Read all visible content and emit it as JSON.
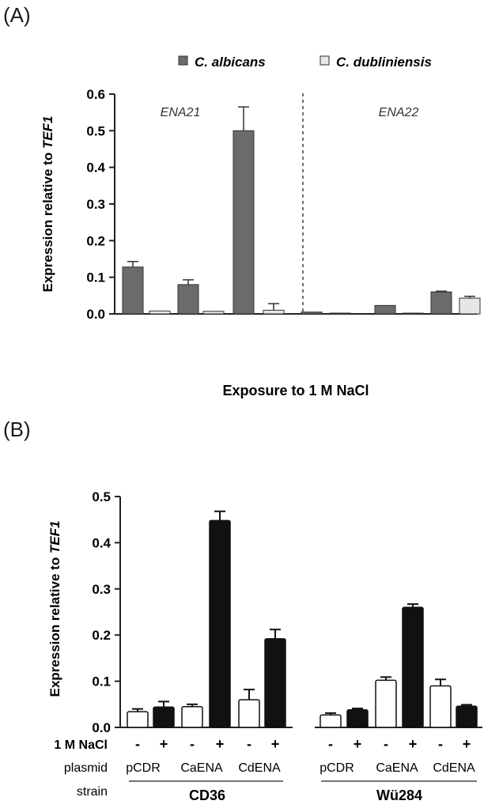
{
  "panels": {
    "a_label": "(A)",
    "b_label": "(B)"
  },
  "chart_data": [
    {
      "panel": "(A)",
      "type": "bar",
      "ylabel_plain": "Expression relative to ",
      "ylabel_italic": "TEF1",
      "xlabel": "Exposure to 1 M NaCl",
      "ylim": [
        0,
        0.6
      ],
      "yticks": [
        "0.0",
        "0.1",
        "0.2",
        "0.3",
        "0.4",
        "0.5",
        "0.6"
      ],
      "legend": [
        "C. albicans",
        "C. dubliniensis"
      ],
      "legend_position": "top-right",
      "region_labels": [
        "ENA21",
        "ENA22"
      ],
      "series": [
        {
          "name": "C. albicans",
          "color": "#6b6b6b"
        },
        {
          "name": "C. dubliniensis",
          "color": "#e6e6e6"
        }
      ],
      "bars": [
        {
          "group": "ENA21",
          "series": "C. albicans",
          "value": 0.128,
          "error": 0.015
        },
        {
          "group": "ENA21",
          "series": "C. dubliniensis",
          "value": 0.008,
          "error": 0.0
        },
        {
          "group": "ENA21",
          "series": "C. albicans",
          "value": 0.08,
          "error": 0.013
        },
        {
          "group": "ENA21",
          "series": "C. dubliniensis",
          "value": 0.007,
          "error": 0.0
        },
        {
          "group": "ENA21",
          "series": "C. albicans",
          "value": 0.5,
          "error": 0.065
        },
        {
          "group": "ENA21",
          "series": "C. dubliniensis",
          "value": 0.01,
          "error": 0.018
        },
        {
          "group": "ENA22",
          "series": "C. albicans",
          "value": 0.005,
          "error": 0.0
        },
        {
          "group": "ENA22",
          "series": "C. dubliniensis",
          "value": 0.0,
          "error": 0.0
        },
        {
          "group": "ENA22",
          "series": "C. albicans",
          "value": 0.023,
          "error": 0.0
        },
        {
          "group": "ENA22",
          "series": "C. dubliniensis",
          "value": 0.0,
          "error": 0.0
        },
        {
          "group": "ENA22",
          "series": "C. albicans",
          "value": 0.06,
          "error": 0.002
        },
        {
          "group": "ENA22",
          "series": "C. dubliniensis",
          "value": 0.043,
          "error": 0.005
        }
      ]
    },
    {
      "panel": "(B)",
      "type": "bar",
      "ylabel_plain": "Expression relative to ",
      "ylabel_italic": "TEF1",
      "ylim": [
        0,
        0.5
      ],
      "yticks": [
        "0.0",
        "0.1",
        "0.2",
        "0.3",
        "0.4",
        "0.5"
      ],
      "row_labels": [
        "1 M NaCl",
        "plasmid",
        "strain"
      ],
      "plasmids": [
        "pCDR",
        "CaENA",
        "CdENA"
      ],
      "strains": [
        "CD36",
        "Wü284"
      ],
      "colors": {
        "minus": "#ffffff",
        "plus": "#111111"
      },
      "bars": [
        {
          "strain": "CD36",
          "plasmid": "pCDR",
          "nacl": "-",
          "value": 0.034,
          "error": 0.006
        },
        {
          "strain": "CD36",
          "plasmid": "pCDR",
          "nacl": "+",
          "value": 0.044,
          "error": 0.012
        },
        {
          "strain": "CD36",
          "plasmid": "CaENA",
          "nacl": "-",
          "value": 0.045,
          "error": 0.005
        },
        {
          "strain": "CD36",
          "plasmid": "CaENA",
          "nacl": "+",
          "value": 0.448,
          "error": 0.02
        },
        {
          "strain": "CD36",
          "plasmid": "CdENA",
          "nacl": "-",
          "value": 0.06,
          "error": 0.022
        },
        {
          "strain": "CD36",
          "plasmid": "CdENA",
          "nacl": "+",
          "value": 0.192,
          "error": 0.02
        },
        {
          "strain": "Wü284",
          "plasmid": "pCDR",
          "nacl": "-",
          "value": 0.027,
          "error": 0.004
        },
        {
          "strain": "Wü284",
          "plasmid": "pCDR",
          "nacl": "+",
          "value": 0.038,
          "error": 0.003
        },
        {
          "strain": "Wü284",
          "plasmid": "CaENA",
          "nacl": "-",
          "value": 0.102,
          "error": 0.007
        },
        {
          "strain": "Wü284",
          "plasmid": "CaENA",
          "nacl": "+",
          "value": 0.26,
          "error": 0.007
        },
        {
          "strain": "Wü284",
          "plasmid": "CdENA",
          "nacl": "-",
          "value": 0.09,
          "error": 0.014
        },
        {
          "strain": "Wü284",
          "plasmid": "CdENA",
          "nacl": "+",
          "value": 0.046,
          "error": 0.003
        }
      ]
    }
  ]
}
